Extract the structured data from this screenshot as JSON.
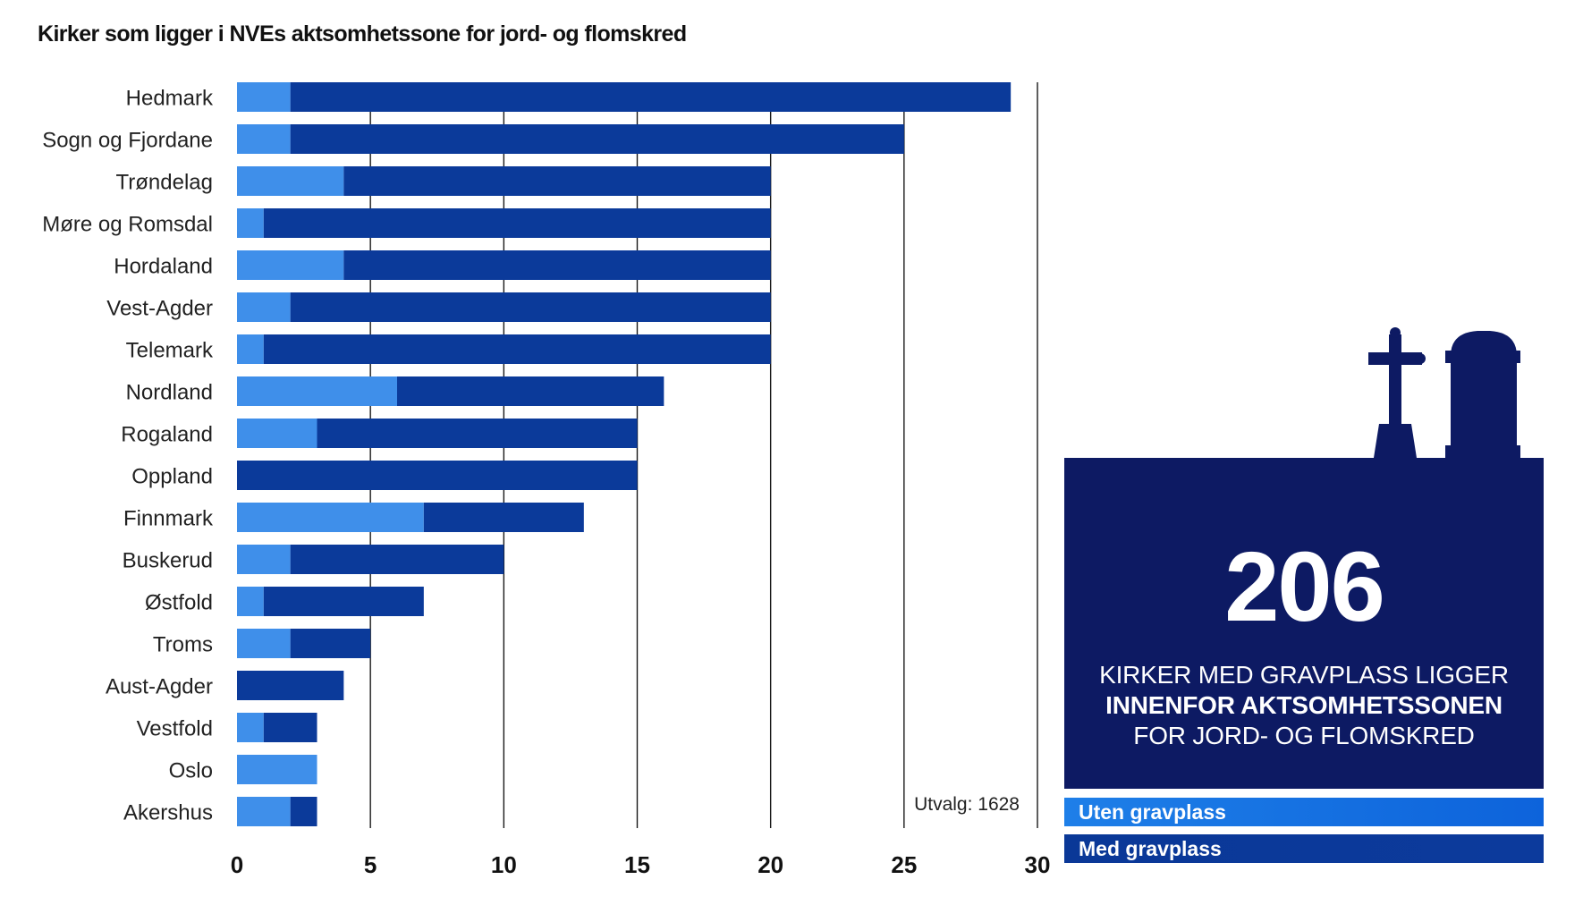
{
  "title": "Kirker som ligger i NVEs aktsomhetssone for jord- og flomskred",
  "note": "Utvalg: 1628",
  "panel": {
    "number": "206",
    "line1": "KIRKER MED GRAVPLASS LIGGER",
    "line2": "INNENFOR AKTSOMHETSSONEN",
    "line3": "FOR JORD- OG FLOMSKRED"
  },
  "legend": {
    "uten": "Uten gravplass",
    "med": "Med gravplass"
  },
  "colors": {
    "uten_gravplass": "#3f8fea",
    "med_gravplass": "#0b3a9a",
    "panel": "#0d1a63"
  },
  "icons": [
    "cross-icon",
    "gravestone-icon"
  ],
  "chart_data": {
    "type": "bar",
    "orientation": "horizontal",
    "stacked": true,
    "title": "Kirker som ligger i NVEs aktsomhetssone for jord- og flomskred",
    "categories": [
      "Hedmark",
      "Sogn og Fjordane",
      "Trøndelag",
      "Møre og Romsdal",
      "Hordaland",
      "Vest-Agder",
      "Telemark",
      "Nordland",
      "Rogaland",
      "Oppland",
      "Finnmark",
      "Buskerud",
      "Østfold",
      "Troms",
      "Aust-Agder",
      "Vestfold",
      "Oslo",
      "Akershus"
    ],
    "series": [
      {
        "name": "Uten gravplass",
        "values": [
          2,
          2,
          4,
          1,
          4,
          2,
          1,
          6,
          3,
          0,
          7,
          2,
          1,
          2,
          0,
          1,
          3,
          2
        ]
      },
      {
        "name": "Med gravplass",
        "values": [
          27,
          23,
          16,
          19,
          16,
          18,
          19,
          10,
          12,
          15,
          6,
          8,
          6,
          3,
          4,
          2,
          0,
          1
        ]
      }
    ],
    "xlim": [
      0,
      30
    ],
    "xticks": [
      0,
      5,
      10,
      15,
      20,
      25,
      30
    ],
    "grid": true,
    "legend_position": "bottom-right"
  }
}
